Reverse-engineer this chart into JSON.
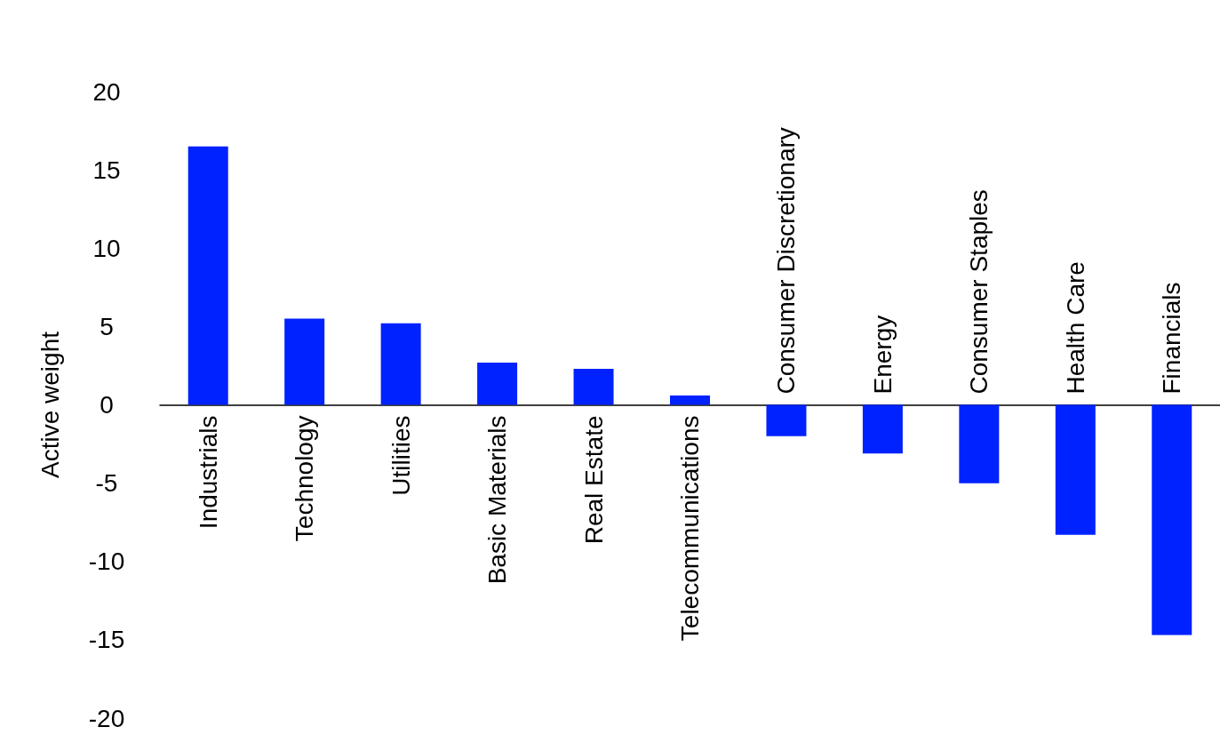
{
  "chart_data": {
    "type": "bar",
    "ylabel": "Active weight",
    "categories": [
      "Industrials",
      "Technology",
      "Utilities",
      "Basic Materials",
      "Real Estate",
      "Telecommunications",
      "Consumer Discretionary",
      "Energy",
      "Consumer Staples",
      "Health Care",
      "Financials"
    ],
    "values": [
      16.5,
      5.5,
      5.2,
      2.7,
      2.3,
      0.6,
      -2.0,
      -3.1,
      -5.0,
      -8.3,
      -14.7
    ],
    "color": "#0022ff",
    "ylim": [
      -20,
      20
    ],
    "yticks": [
      -20,
      -15,
      -10,
      -5,
      0,
      5,
      10,
      15,
      20
    ],
    "grid": false
  }
}
